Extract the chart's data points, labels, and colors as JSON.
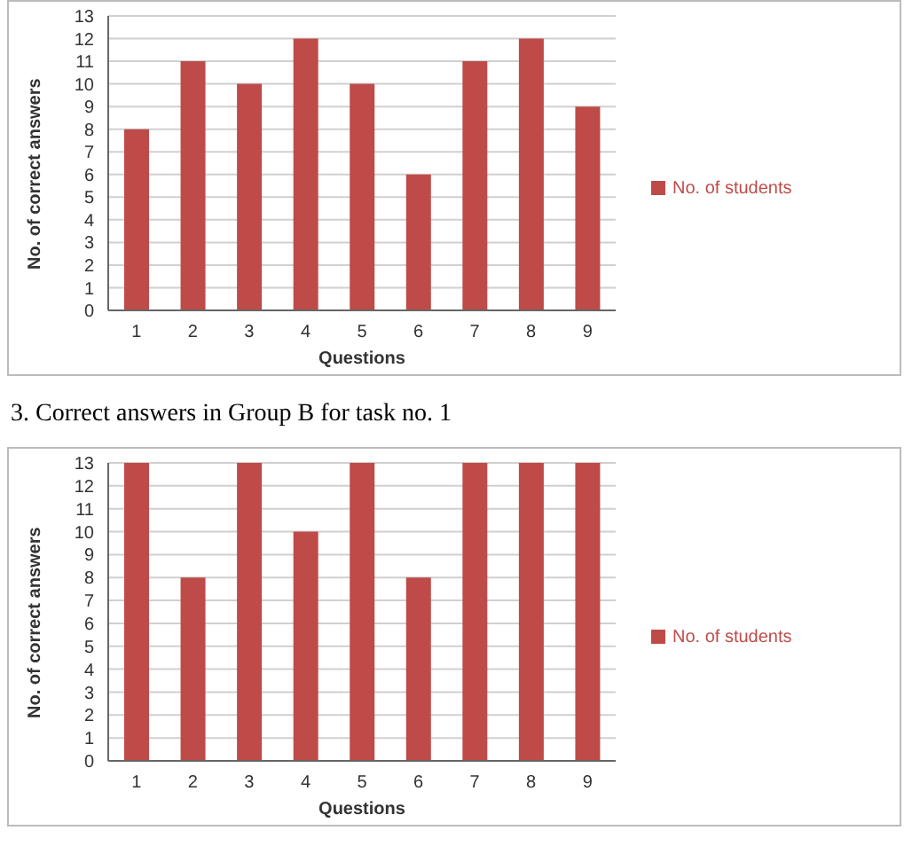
{
  "chart_data": [
    {
      "type": "bar",
      "xlabel": "Questions",
      "ylabel": "No. of correct answers",
      "categories": [
        "1",
        "2",
        "3",
        "4",
        "5",
        "6",
        "7",
        "8",
        "9"
      ],
      "series": [
        {
          "name": "No. of students",
          "color": "#be4b48",
          "values": [
            8,
            11,
            10,
            12,
            10,
            6,
            11,
            12,
            9
          ]
        }
      ],
      "ylim": [
        0,
        13
      ],
      "yticks": [
        0,
        1,
        2,
        3,
        4,
        5,
        6,
        7,
        8,
        9,
        10,
        11,
        12,
        13
      ],
      "grid": "y",
      "legend": "right",
      "annotations": [
        "3. Correct answers in Group B for task no. 1"
      ]
    },
    {
      "type": "bar",
      "xlabel": "Questions",
      "ylabel": "No. of correct answers",
      "categories": [
        "1",
        "2",
        "3",
        "4",
        "5",
        "6",
        "7",
        "8",
        "9"
      ],
      "series": [
        {
          "name": "No. of students",
          "color": "#be4b48",
          "values": [
            13,
            8,
            13,
            10,
            13,
            8,
            13,
            13,
            13
          ]
        }
      ],
      "ylim": [
        0,
        13
      ],
      "yticks": [
        0,
        1,
        2,
        3,
        4,
        5,
        6,
        7,
        8,
        9,
        10,
        11,
        12,
        13
      ],
      "grid": "y",
      "legend": "right"
    }
  ]
}
